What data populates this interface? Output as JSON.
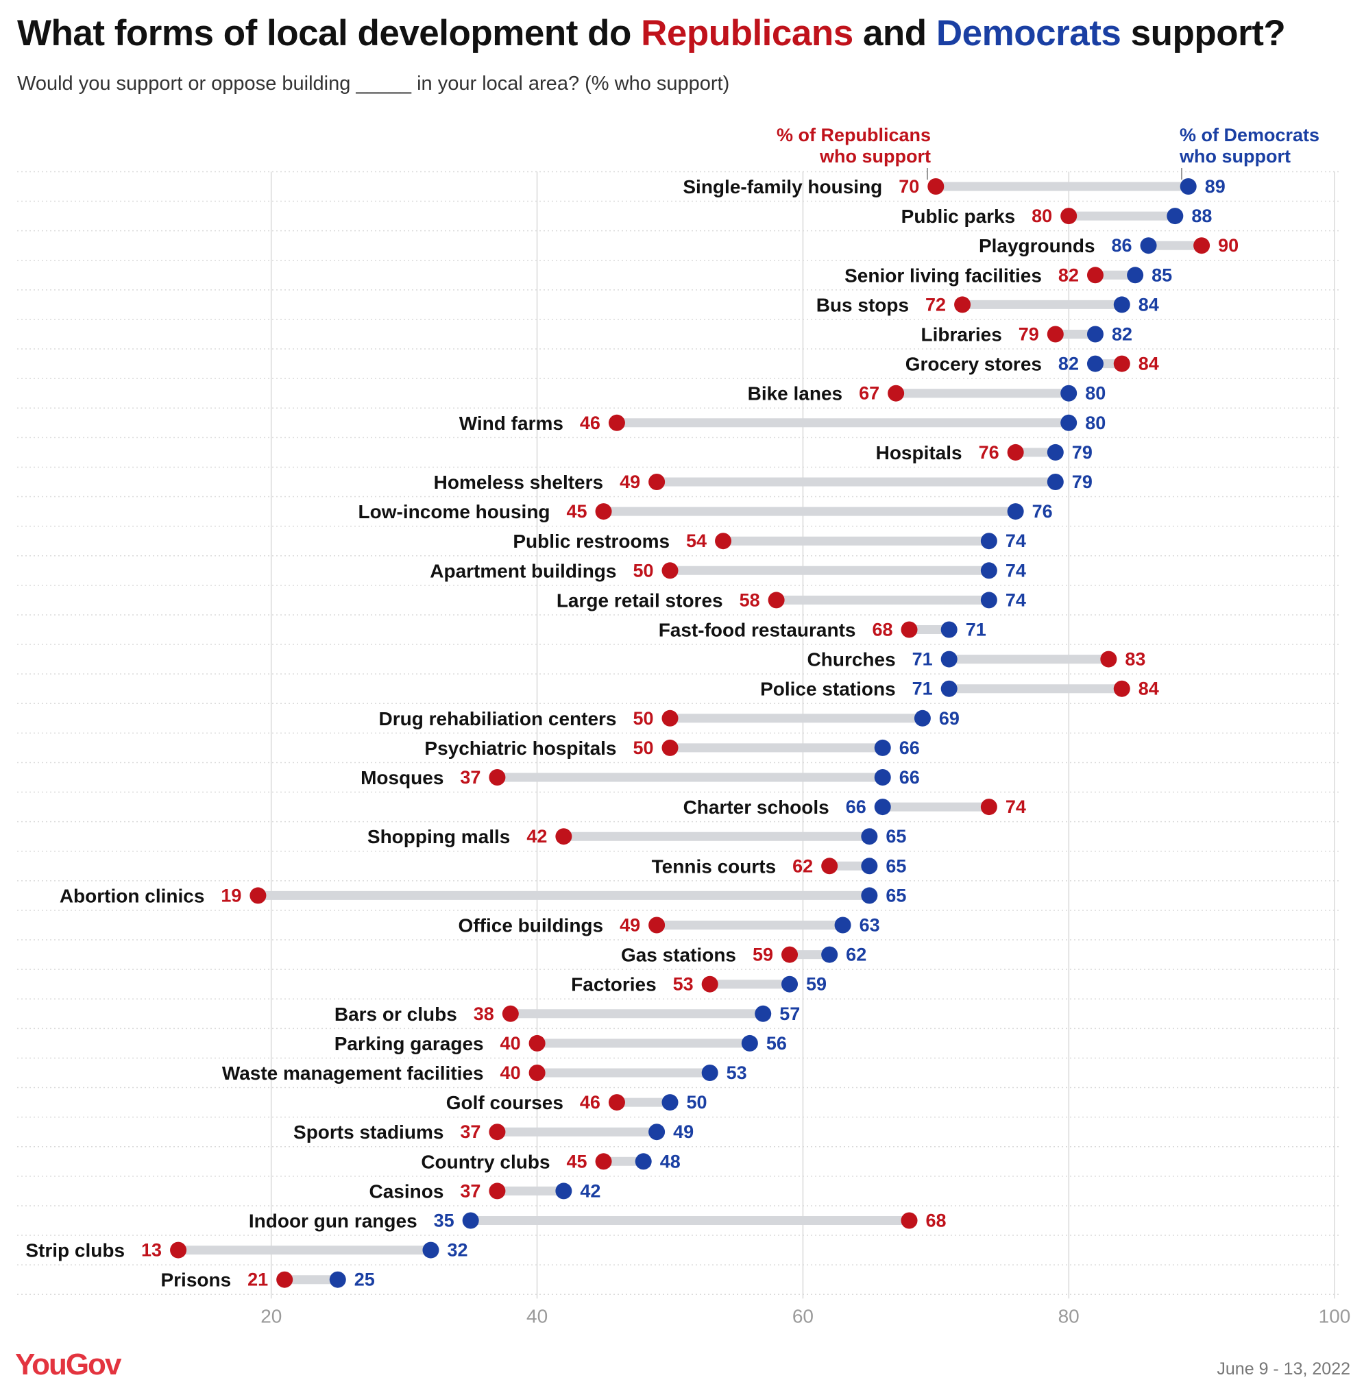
{
  "header": {
    "title_prefix": "What forms of local development do ",
    "title_rep": "Republicans",
    "title_mid": " and ",
    "title_dem": "Democrats",
    "title_suffix": " support?",
    "subtitle": "Would you support or oppose building _____ in your local area? (% who support)"
  },
  "legend": {
    "rep_line1": "% of Republicans",
    "rep_line2": "who support",
    "dem_line1": "% of Democrats",
    "dem_line2": "who support"
  },
  "colors": {
    "republican": "#c0121b",
    "democrat": "#1a3fa3",
    "bar": "#d5d7db",
    "grid": "#e3e3e3",
    "row_line": "#dadada",
    "brand": "#e3343f"
  },
  "chart_data": {
    "type": "dumbbell",
    "title": "What forms of local development do Republicans and Democrats support?",
    "xlabel": "% who support",
    "xlim": [
      0,
      100
    ],
    "x_ticks": [
      20,
      40,
      60,
      80,
      100
    ],
    "series_names": [
      "Republicans",
      "Democrats"
    ],
    "rows": [
      {
        "label": "Single-family housing",
        "rep": 70,
        "dem": 89
      },
      {
        "label": "Public parks",
        "rep": 80,
        "dem": 88
      },
      {
        "label": "Playgrounds",
        "rep": 90,
        "dem": 86
      },
      {
        "label": "Senior living facilities",
        "rep": 82,
        "dem": 85
      },
      {
        "label": "Bus stops",
        "rep": 72,
        "dem": 84
      },
      {
        "label": "Libraries",
        "rep": 79,
        "dem": 82
      },
      {
        "label": "Grocery stores",
        "rep": 84,
        "dem": 82
      },
      {
        "label": "Bike lanes",
        "rep": 67,
        "dem": 80
      },
      {
        "label": "Wind farms",
        "rep": 46,
        "dem": 80
      },
      {
        "label": "Hospitals",
        "rep": 76,
        "dem": 79
      },
      {
        "label": "Homeless shelters",
        "rep": 49,
        "dem": 79
      },
      {
        "label": "Low-income housing",
        "rep": 45,
        "dem": 76
      },
      {
        "label": "Public restrooms",
        "rep": 54,
        "dem": 74
      },
      {
        "label": "Apartment buildings",
        "rep": 50,
        "dem": 74
      },
      {
        "label": "Large retail stores",
        "rep": 58,
        "dem": 74
      },
      {
        "label": "Fast-food restaurants",
        "rep": 68,
        "dem": 71
      },
      {
        "label": "Churches",
        "rep": 83,
        "dem": 71
      },
      {
        "label": "Police stations",
        "rep": 84,
        "dem": 71
      },
      {
        "label": "Drug rehabiliation centers",
        "rep": 50,
        "dem": 69
      },
      {
        "label": "Psychiatric hospitals",
        "rep": 50,
        "dem": 66
      },
      {
        "label": "Mosques",
        "rep": 37,
        "dem": 66
      },
      {
        "label": "Charter schools",
        "rep": 74,
        "dem": 66
      },
      {
        "label": "Shopping malls",
        "rep": 42,
        "dem": 65
      },
      {
        "label": "Tennis courts",
        "rep": 62,
        "dem": 65
      },
      {
        "label": "Abortion clinics",
        "rep": 19,
        "dem": 65
      },
      {
        "label": "Office buildings",
        "rep": 49,
        "dem": 63
      },
      {
        "label": "Gas stations",
        "rep": 59,
        "dem": 62
      },
      {
        "label": "Factories",
        "rep": 53,
        "dem": 59
      },
      {
        "label": "Bars or clubs",
        "rep": 38,
        "dem": 57
      },
      {
        "label": "Parking garages",
        "rep": 40,
        "dem": 56
      },
      {
        "label": "Waste management facilities",
        "rep": 40,
        "dem": 53
      },
      {
        "label": "Golf courses",
        "rep": 46,
        "dem": 50
      },
      {
        "label": "Sports stadiums",
        "rep": 37,
        "dem": 49
      },
      {
        "label": "Country clubs",
        "rep": 45,
        "dem": 48
      },
      {
        "label": "Casinos",
        "rep": 37,
        "dem": 42
      },
      {
        "label": "Indoor gun ranges",
        "rep": 68,
        "dem": 35
      },
      {
        "label": "Strip clubs",
        "rep": 13,
        "dem": 32
      },
      {
        "label": "Prisons",
        "rep": 21,
        "dem": 25
      }
    ]
  },
  "footer": {
    "brand": "YouGov",
    "date": "June 9 - 13, 2022"
  }
}
